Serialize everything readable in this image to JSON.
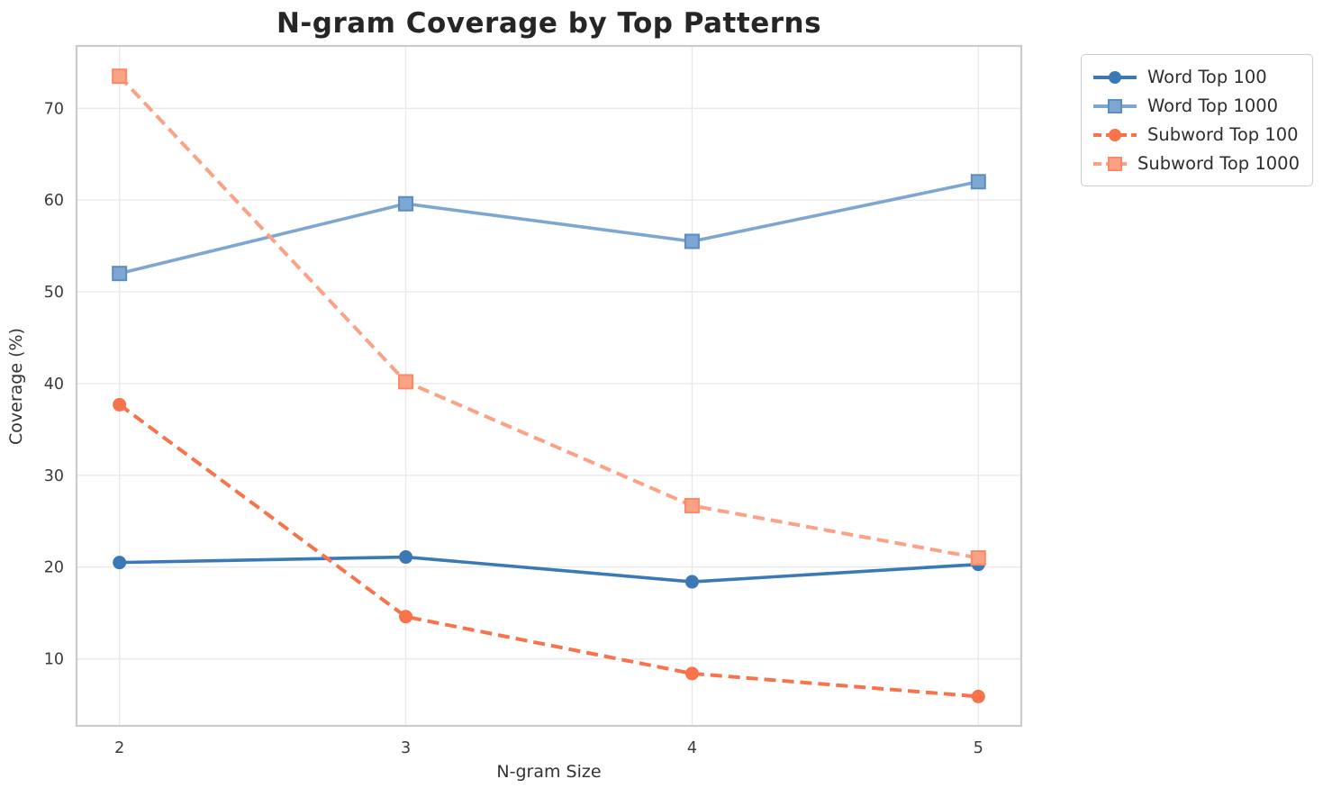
{
  "title": "N-gram Coverage by Top Patterns",
  "chart_data": {
    "type": "line",
    "title": "N-gram Coverage by Top Patterns",
    "xlabel": "N-gram Size",
    "ylabel": "Coverage (%)",
    "x": [
      2,
      3,
      4,
      5
    ],
    "xticks": [
      "2",
      "3",
      "4",
      "5"
    ],
    "yticks": [
      10,
      20,
      30,
      40,
      50,
      60,
      70
    ],
    "xlim": [
      1.85,
      5.15
    ],
    "ylim": [
      2.7,
      76.8
    ],
    "grid": true,
    "legend_position": "outside-top-right",
    "series": [
      {
        "name": "Word Top 100",
        "values": [
          20.5,
          21.1,
          18.4,
          20.3
        ],
        "color": "#3a79b5",
        "marker": "circle",
        "marker_edge": "#3a79b5",
        "line_style": "solid"
      },
      {
        "name": "Word Top 1000",
        "values": [
          52.0,
          59.6,
          55.5,
          62.0
        ],
        "color": "#7da6d1",
        "marker": "square",
        "marker_edge": "#5a8dc0",
        "line_style": "solid"
      },
      {
        "name": "Subword Top 100",
        "values": [
          37.7,
          14.6,
          8.4,
          5.9
        ],
        "color": "#f8724b",
        "marker": "circle",
        "marker_edge": "#f8724b",
        "line_style": "dashed"
      },
      {
        "name": "Subword Top 1000",
        "values": [
          73.5,
          40.2,
          26.7,
          21.0
        ],
        "color": "#fba286",
        "marker": "square",
        "marker_edge": "#f98a65",
        "line_style": "dashed"
      }
    ],
    "style": {
      "grid_color": "#e9e9e9",
      "spine_color": "#cbcbcb",
      "background": "#ffffff"
    }
  }
}
